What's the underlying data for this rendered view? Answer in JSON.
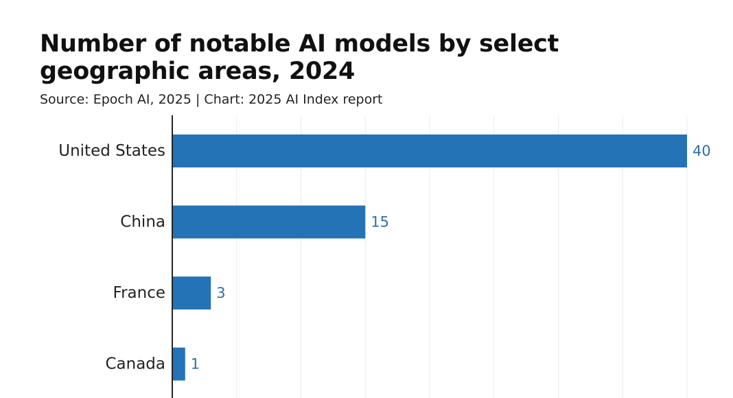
{
  "header": {
    "title": "Number of notable AI models by select geographic areas, 2024",
    "subtitle": "Source: Epoch AI, 2025 | Chart: 2025 AI Index report"
  },
  "colors": {
    "bar": "#2473b7",
    "value_label": "#2f6fa3",
    "axis": "#222222",
    "grid": "#ececec"
  },
  "chart_data": {
    "type": "bar",
    "orientation": "horizontal",
    "title": "Number of notable AI models by select geographic areas, 2024",
    "subtitle": "Source: Epoch AI, 2025 | Chart: 2025 AI Index report",
    "categories": [
      "United States",
      "China",
      "France",
      "Canada"
    ],
    "values": [
      40,
      15,
      3,
      1
    ],
    "xlim": [
      0,
      40
    ],
    "grid": true,
    "data_labels": true
  }
}
